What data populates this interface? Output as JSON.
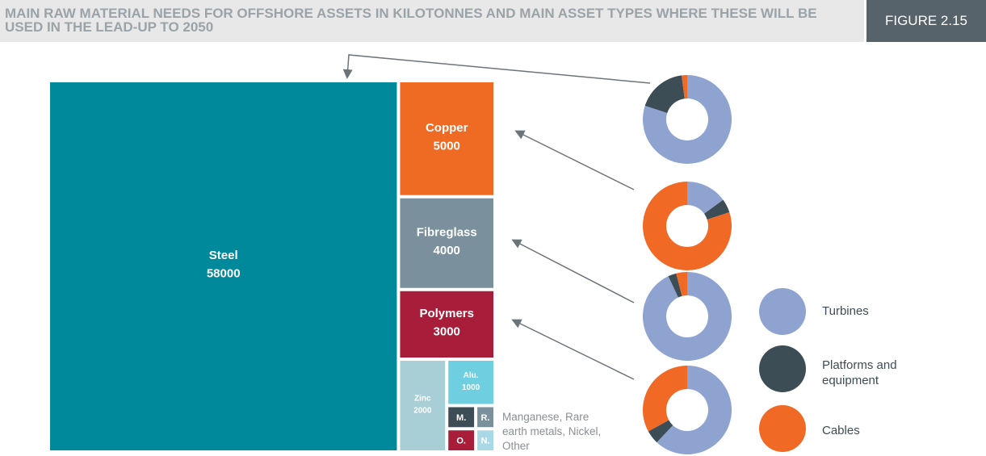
{
  "header": {
    "title": "MAIN RAW MATERIAL NEEDS FOR OFFSHORE ASSETS IN KILOTONNES AND MAIN ASSET TYPES WHERE THESE WILL BE USED IN THE LEAD-UP TO 2050",
    "figure": "FIGURE 2.15"
  },
  "chart_data": [
    {
      "type": "treemap",
      "categories": [
        "Steel",
        "Copper",
        "Fibreglass",
        "Polymers",
        "Zinc",
        "Alu.",
        "M.",
        "R.",
        "O.",
        "N."
      ],
      "values": [
        58000,
        5000,
        4000,
        3000,
        2000,
        1000,
        300,
        200,
        300,
        200
      ],
      "colors": [
        "#00899b",
        "#ef6a22",
        "#7a909c",
        "#a71d3a",
        "#a9cfd6",
        "#6dcfe0",
        "#3d4d55",
        "#7a909c",
        "#a71d3a",
        "#a9d9e6"
      ],
      "annotation": "Manganese, Rare earth metals, Nickel, Other"
    },
    {
      "type": "donut",
      "categories": [
        "Turbines",
        "Platforms and equipment",
        "Cables"
      ],
      "colors": [
        "#8fa3d0",
        "#3d4d55",
        "#f06a25"
      ],
      "series": [
        {
          "values": [
            80,
            18,
            2
          ]
        },
        {
          "values": [
            15,
            5,
            80
          ]
        },
        {
          "values": [
            93,
            3,
            4
          ]
        },
        {
          "values": [
            62,
            5,
            33
          ]
        }
      ]
    }
  ]
}
